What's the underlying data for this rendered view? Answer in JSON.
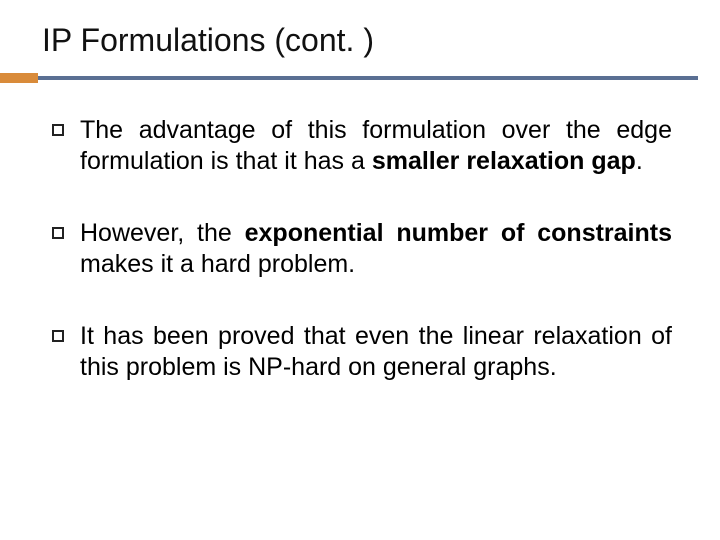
{
  "slide": {
    "title": "IP Formulations (cont. )",
    "accent_block_color": "#d98b3a",
    "rule_color": "#5a6f93",
    "background_color": "#ffffff",
    "text_color": "#000000",
    "title_fontsize": 32,
    "body_fontsize": 25,
    "bullets": [
      {
        "segments": [
          {
            "text": "The advantage of this formulation over the edge formulation is that it has a ",
            "bold": false
          },
          {
            "text": "smaller relaxation gap",
            "bold": true
          },
          {
            "text": ".",
            "bold": false
          }
        ]
      },
      {
        "segments": [
          {
            "text": "However, the ",
            "bold": false
          },
          {
            "text": "exponential number of constraints",
            "bold": true
          },
          {
            "text": " makes it a hard problem.",
            "bold": false
          }
        ]
      },
      {
        "segments": [
          {
            "text": "It has been proved that even the linear relaxation of this problem is NP-hard on general graphs.",
            "bold": false
          }
        ]
      }
    ]
  }
}
